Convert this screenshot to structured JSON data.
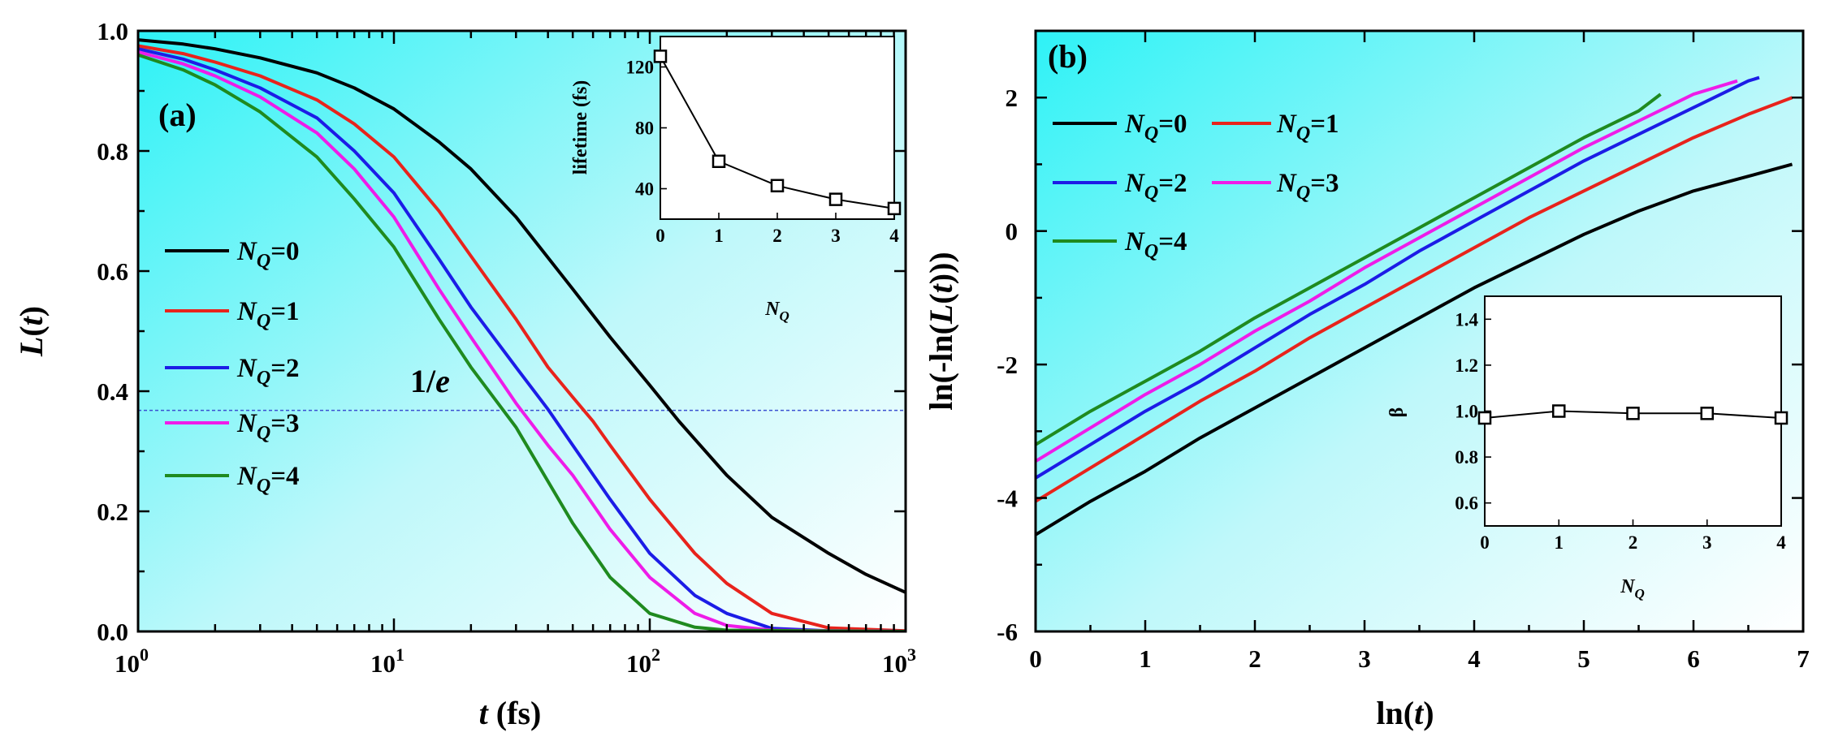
{
  "chart_data": [
    {
      "panel": "(a)",
      "type": "line",
      "xscale": "log",
      "xlim": [
        1,
        1000
      ],
      "ylim": [
        0.0,
        1.0
      ],
      "xticks": [
        1,
        10,
        100,
        1000
      ],
      "xtick_labels": [
        {
          "base": "10",
          "exp": "0"
        },
        {
          "base": "10",
          "exp": "1"
        },
        {
          "base": "10",
          "exp": "2"
        },
        {
          "base": "10",
          "exp": "3"
        }
      ],
      "yticks": [
        0.0,
        0.2,
        0.4,
        0.6,
        0.8,
        1.0
      ],
      "ytick_labels": [
        "0.0",
        "0.2",
        "0.4",
        "0.6",
        "0.8",
        "1.0"
      ],
      "xlabel": {
        "var": "t",
        "unit": " (fs)"
      },
      "ylabel": {
        "var": "L",
        "pre": "",
        "open": "(",
        "arg": "t",
        "close": ")"
      },
      "reference_line": {
        "y": 0.368,
        "label_pre": "1/",
        "label_var": "e",
        "color": "#3a4fd0"
      },
      "legend_placement": "center-left",
      "series": [
        {
          "legend": "0",
          "color": "#000000",
          "x": [
            1,
            1.5,
            2,
            3,
            5,
            7,
            10,
            15,
            20,
            30,
            50,
            70,
            100,
            130,
            150,
            200,
            300,
            500,
            700,
            1000
          ],
          "y": [
            0.985,
            0.978,
            0.97,
            0.955,
            0.93,
            0.905,
            0.87,
            0.815,
            0.77,
            0.69,
            0.57,
            0.49,
            0.41,
            0.35,
            0.32,
            0.26,
            0.19,
            0.13,
            0.095,
            0.065
          ]
        },
        {
          "legend": "1",
          "color": "#e8231c",
          "x": [
            1,
            1.5,
            2,
            3,
            5,
            7,
            10,
            15,
            20,
            30,
            40,
            50,
            60,
            70,
            100,
            150,
            200,
            300,
            500,
            1000
          ],
          "y": [
            0.975,
            0.962,
            0.948,
            0.925,
            0.885,
            0.845,
            0.79,
            0.7,
            0.625,
            0.52,
            0.44,
            0.39,
            0.35,
            0.31,
            0.22,
            0.13,
            0.08,
            0.03,
            0.006,
            0.001
          ]
        },
        {
          "legend": "2",
          "color": "#1c1ce6",
          "x": [
            1,
            1.5,
            2,
            3,
            5,
            7,
            10,
            15,
            20,
            30,
            40,
            50,
            70,
            100,
            150,
            200,
            300,
            500,
            1000
          ],
          "y": [
            0.97,
            0.953,
            0.935,
            0.905,
            0.855,
            0.8,
            0.73,
            0.62,
            0.54,
            0.44,
            0.37,
            0.31,
            0.22,
            0.13,
            0.06,
            0.03,
            0.005,
            0.001,
            0.0
          ]
        },
        {
          "legend": "3",
          "color": "#ee1ce8",
          "x": [
            1,
            1.5,
            2,
            3,
            5,
            7,
            10,
            15,
            20,
            30,
            40,
            50,
            70,
            100,
            150,
            200,
            300,
            1000
          ],
          "y": [
            0.965,
            0.945,
            0.925,
            0.89,
            0.83,
            0.77,
            0.69,
            0.57,
            0.49,
            0.38,
            0.31,
            0.26,
            0.17,
            0.09,
            0.03,
            0.01,
            0.002,
            0.0
          ]
        },
        {
          "legend": "4",
          "color": "#1f8a1f",
          "x": [
            1,
            1.5,
            2,
            3,
            5,
            7,
            10,
            15,
            20,
            30,
            40,
            50,
            70,
            100,
            150,
            200,
            1000
          ],
          "y": [
            0.96,
            0.935,
            0.91,
            0.865,
            0.79,
            0.72,
            0.64,
            0.52,
            0.44,
            0.34,
            0.25,
            0.18,
            0.09,
            0.03,
            0.007,
            0.002,
            0.0
          ]
        }
      ],
      "inset": {
        "type": "line-marker",
        "xlim": [
          0,
          4
        ],
        "ylim": [
          20,
          140
        ],
        "xticks": [
          0,
          1,
          2,
          3,
          4
        ],
        "xtick_labels": [
          "0",
          "1",
          "2",
          "3",
          "4"
        ],
        "yticks": [
          40,
          80,
          120
        ],
        "ytick_labels": [
          "40",
          "80",
          "120"
        ],
        "xlabel": {
          "var": "N",
          "sub": "Q"
        },
        "ylabel": "lifetime (fs)",
        "x": [
          0,
          1,
          2,
          3,
          4
        ],
        "y": [
          127,
          58,
          42,
          33,
          27
        ]
      }
    },
    {
      "panel": "(b)",
      "type": "line",
      "xlim": [
        0,
        7
      ],
      "ylim": [
        -6,
        3
      ],
      "xticks": [
        0,
        1,
        2,
        3,
        4,
        5,
        6,
        7
      ],
      "xtick_labels": [
        "0",
        "1",
        "2",
        "3",
        "4",
        "5",
        "6",
        "7"
      ],
      "yticks": [
        -6,
        -4,
        -2,
        0,
        2
      ],
      "ytick_labels": [
        "-6",
        "-4",
        "-2",
        "0",
        "2"
      ],
      "xlabel": {
        "pre": "ln(",
        "var": "t",
        "post": ")"
      },
      "ylabel": {
        "pre": "ln(-ln(",
        "var": "L",
        "open": "(",
        "arg": "t",
        "close": ")))"
      },
      "legend_placement": "top-left",
      "series": [
        {
          "legend": "0",
          "color": "#000000",
          "x": [
            0,
            0.5,
            1,
            1.5,
            2,
            2.5,
            3,
            3.5,
            4,
            4.5,
            5,
            5.5,
            6,
            6.5,
            6.9
          ],
          "y": [
            -4.55,
            -4.05,
            -3.6,
            -3.1,
            -2.65,
            -2.2,
            -1.75,
            -1.3,
            -0.85,
            -0.45,
            -0.05,
            0.3,
            0.6,
            0.82,
            1.0
          ]
        },
        {
          "legend": "1",
          "color": "#e8231c",
          "x": [
            0,
            0.5,
            1,
            1.5,
            2,
            2.5,
            3,
            3.5,
            4,
            4.5,
            5,
            5.5,
            6,
            6.5,
            6.9
          ],
          "y": [
            -4.05,
            -3.55,
            -3.05,
            -2.55,
            -2.1,
            -1.6,
            -1.15,
            -0.7,
            -0.25,
            0.2,
            0.6,
            1.0,
            1.4,
            1.75,
            2.0
          ]
        },
        {
          "legend": "2",
          "color": "#1c1ce6",
          "x": [
            0,
            0.5,
            1,
            1.5,
            2,
            2.5,
            3,
            3.5,
            4,
            4.5,
            5,
            5.5,
            6,
            6.5,
            6.6
          ],
          "y": [
            -3.7,
            -3.2,
            -2.7,
            -2.25,
            -1.75,
            -1.25,
            -0.8,
            -0.3,
            0.15,
            0.6,
            1.05,
            1.45,
            1.85,
            2.25,
            2.3
          ]
        },
        {
          "legend": "3",
          "color": "#ee1ce8",
          "x": [
            0,
            0.5,
            1,
            1.5,
            2,
            2.5,
            3,
            3.5,
            4,
            4.5,
            5,
            5.5,
            6,
            6.4
          ],
          "y": [
            -3.45,
            -2.95,
            -2.45,
            -2.0,
            -1.5,
            -1.05,
            -0.55,
            -0.1,
            0.35,
            0.8,
            1.25,
            1.65,
            2.05,
            2.25
          ]
        },
        {
          "legend": "4",
          "color": "#1f8a1f",
          "x": [
            0,
            0.5,
            1,
            1.5,
            2,
            2.5,
            3,
            3.5,
            4,
            4.5,
            5,
            5.5,
            5.7
          ],
          "y": [
            -3.2,
            -2.7,
            -2.25,
            -1.8,
            -1.3,
            -0.85,
            -0.4,
            0.05,
            0.5,
            0.95,
            1.4,
            1.8,
            2.05
          ]
        }
      ],
      "inset": {
        "type": "line-marker",
        "xlim": [
          0,
          4
        ],
        "ylim": [
          0.5,
          1.5
        ],
        "xticks": [
          0,
          1,
          2,
          3,
          4
        ],
        "xtick_labels": [
          "0",
          "1",
          "2",
          "3",
          "4"
        ],
        "yticks": [
          0.6,
          0.8,
          1.0,
          1.2,
          1.4
        ],
        "ytick_labels": [
          "0.6",
          "0.8",
          "1.0",
          "1.2",
          "1.4"
        ],
        "xlabel": {
          "var": "N",
          "sub": "Q"
        },
        "ylabel": "β",
        "x": [
          0,
          1,
          2,
          3,
          4
        ],
        "y": [
          0.97,
          1.0,
          0.99,
          0.99,
          0.97
        ]
      }
    }
  ]
}
